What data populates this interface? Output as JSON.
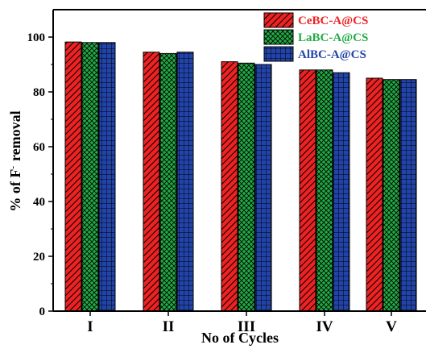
{
  "chart_data": {
    "type": "bar",
    "categories": [
      "I",
      "II",
      "III",
      "IV",
      "V"
    ],
    "series": [
      {
        "name": "CeBC-A@CS",
        "values": [
          98.2,
          94.5,
          91.0,
          88.0,
          85.0
        ],
        "color": "#ee2222",
        "pattern": "diagonal-hatch"
      },
      {
        "name": "LaBC-A@CS",
        "values": [
          98.0,
          94.0,
          90.5,
          88.0,
          84.5
        ],
        "color": "#22aa44",
        "pattern": "cross-hatch"
      },
      {
        "name": "AlBC-A@CS",
        "values": [
          98.0,
          94.5,
          90.0,
          87.0,
          84.5
        ],
        "color": "#2244aa",
        "pattern": "grid"
      }
    ],
    "ylim": [
      0,
      110
    ],
    "yticks": [
      0,
      20,
      40,
      60,
      80,
      100
    ],
    "xlabel": "No of Cycles",
    "ylabel_main": "% of F",
    "ylabel_sup": "-",
    "ylabel_rest": "removal",
    "legend_position": "top-right",
    "grid": false
  }
}
